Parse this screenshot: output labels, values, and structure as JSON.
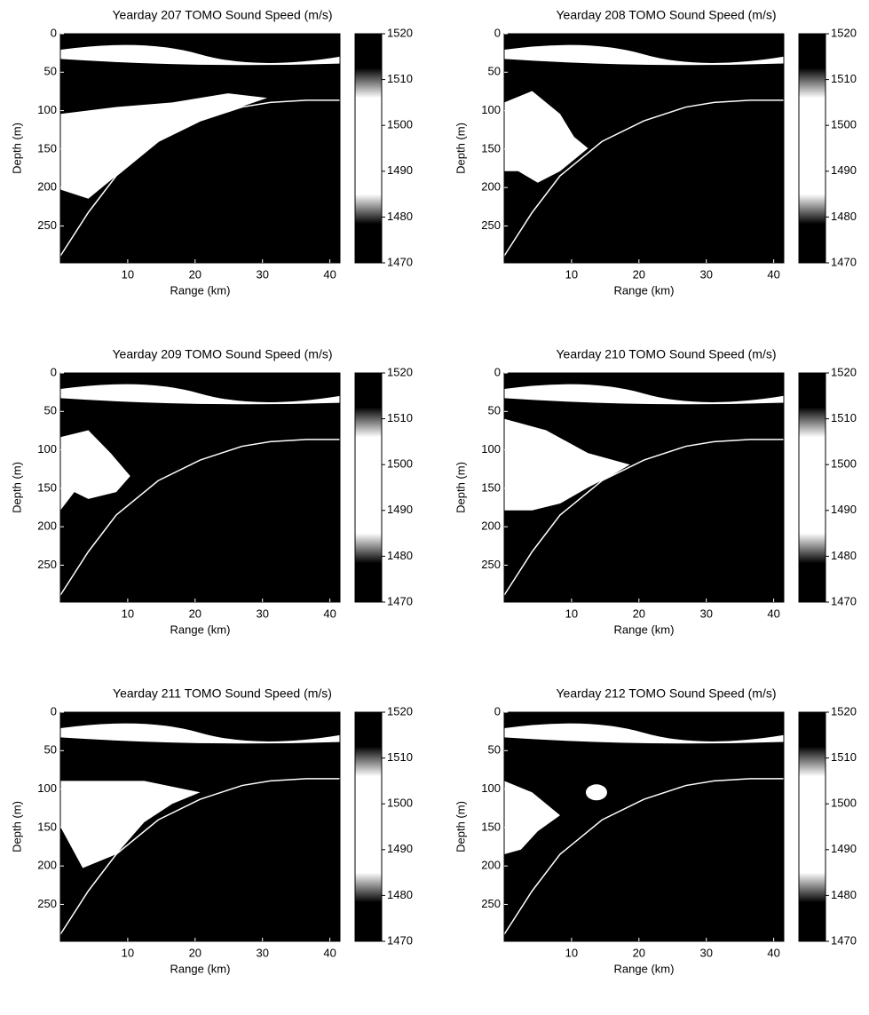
{
  "chart_data": [
    {
      "type": "heatmap",
      "title": "Yearday 207 TOMO Sound Speed (m/s)",
      "xlabel": "Range (km)",
      "ylabel": "Depth (m)",
      "xlim": [
        0,
        41.5
      ],
      "xticks": [
        10,
        20,
        30,
        40
      ],
      "ylim": [
        0,
        298
      ],
      "yticks": [
        0,
        50,
        100,
        150,
        200,
        250
      ],
      "clim": [
        1470,
        1520
      ],
      "cticks": [
        1470,
        1480,
        1490,
        1500,
        1510,
        1520
      ]
    },
    {
      "type": "heatmap",
      "title": "Yearday 208 TOMO Sound Speed (m/s)",
      "xlabel": "Range (km)",
      "ylabel": "Depth (m)",
      "xlim": [
        0,
        41.5
      ],
      "xticks": [
        10,
        20,
        30,
        40
      ],
      "ylim": [
        0,
        298
      ],
      "yticks": [
        0,
        50,
        100,
        150,
        200,
        250
      ],
      "clim": [
        1470,
        1520
      ],
      "cticks": [
        1470,
        1480,
        1490,
        1500,
        1510,
        1520
      ]
    },
    {
      "type": "heatmap",
      "title": "Yearday 209 TOMO Sound Speed (m/s)",
      "xlabel": "Range (km)",
      "ylabel": "Depth (m)",
      "xlim": [
        0,
        41.5
      ],
      "xticks": [
        10,
        20,
        30,
        40
      ],
      "ylim": [
        0,
        298
      ],
      "yticks": [
        0,
        50,
        100,
        150,
        200,
        250
      ],
      "clim": [
        1470,
        1520
      ],
      "cticks": [
        1470,
        1480,
        1490,
        1500,
        1510,
        1520
      ]
    },
    {
      "type": "heatmap",
      "title": "Yearday 210 TOMO Sound Speed (m/s)",
      "xlabel": "Range (km)",
      "ylabel": "Depth (m)",
      "xlim": [
        0,
        41.5
      ],
      "xticks": [
        10,
        20,
        30,
        40
      ],
      "ylim": [
        0,
        298
      ],
      "yticks": [
        0,
        50,
        100,
        150,
        200,
        250
      ],
      "clim": [
        1470,
        1520
      ],
      "cticks": [
        1470,
        1480,
        1490,
        1500,
        1510,
        1520
      ]
    },
    {
      "type": "heatmap",
      "title": "Yearday 211 TOMO Sound Speed (m/s)",
      "xlabel": "Range (km)",
      "ylabel": "Depth (m)",
      "xlim": [
        0,
        41.5
      ],
      "xticks": [
        10,
        20,
        30,
        40
      ],
      "ylim": [
        0,
        298
      ],
      "yticks": [
        0,
        50,
        100,
        150,
        200,
        250
      ],
      "clim": [
        1470,
        1520
      ],
      "cticks": [
        1470,
        1480,
        1490,
        1500,
        1510,
        1520
      ]
    },
    {
      "type": "heatmap",
      "title": "Yearday 212 TOMO Sound Speed (m/s)",
      "xlabel": "Range (km)",
      "ylabel": "Depth (m)",
      "xlim": [
        0,
        41.5
      ],
      "xticks": [
        10,
        20,
        30,
        40
      ],
      "ylim": [
        0,
        298
      ],
      "yticks": [
        0,
        50,
        100,
        150,
        200,
        250
      ],
      "clim": [
        1470,
        1520
      ],
      "cticks": [
        1470,
        1480,
        1490,
        1500,
        1510,
        1520
      ]
    }
  ]
}
